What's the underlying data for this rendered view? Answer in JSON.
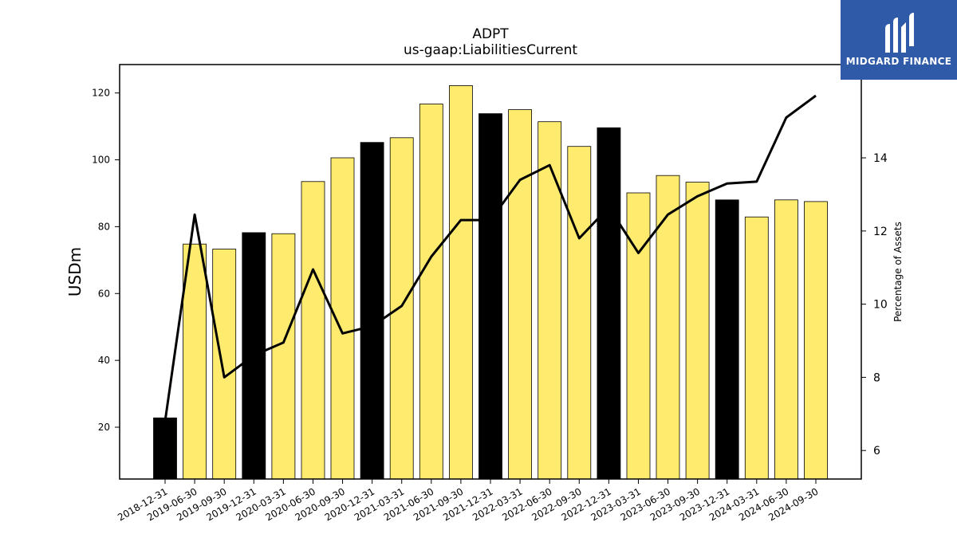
{
  "chart_data": {
    "type": "bar",
    "title": "ADPT",
    "subtitle": "us-gaap:LiabilitiesCurrent",
    "ylabel": "USDm",
    "y2label": "Percentage of Assets",
    "categories": [
      "2018-12-31",
      "2019-06-30",
      "2019-09-30",
      "2019-12-31",
      "2020-03-31",
      "2020-06-30",
      "2020-09-30",
      "2020-12-31",
      "2021-03-31",
      "2021-06-30",
      "2021-09-30",
      "2021-12-31",
      "2022-03-31",
      "2022-06-30",
      "2022-09-30",
      "2022-12-31",
      "2023-03-31",
      "2023-06-30",
      "2023-09-30",
      "2023-12-31",
      "2024-03-31",
      "2024-06-30",
      "2024-09-30"
    ],
    "series": [
      {
        "type": "bar",
        "axis": "left",
        "values": [
          22.8,
          74.8,
          73.3,
          78.2,
          77.9,
          93.5,
          100.6,
          105.2,
          106.6,
          116.7,
          122.2,
          113.8,
          115.0,
          111.4,
          104.0,
          109.6,
          90.1,
          95.3,
          93.3,
          88.0,
          82.9,
          88.0,
          87.5
        ],
        "bar_colors": [
          "#000000",
          "#ffec6e",
          "#ffec6e",
          "#000000",
          "#ffec6e",
          "#ffec6e",
          "#ffec6e",
          "#000000",
          "#ffec6e",
          "#ffec6e",
          "#ffec6e",
          "#000000",
          "#ffec6e",
          "#ffec6e",
          "#ffec6e",
          "#000000",
          "#ffec6e",
          "#ffec6e",
          "#ffec6e",
          "#000000",
          "#ffec6e",
          "#ffec6e",
          "#ffec6e"
        ]
      },
      {
        "type": "line",
        "axis": "right",
        "color": "#000000",
        "values": [
          6.8,
          12.45,
          8.0,
          8.6,
          8.95,
          10.95,
          9.2,
          9.4,
          9.95,
          11.3,
          12.3,
          12.3,
          13.4,
          13.8,
          11.8,
          12.65,
          11.4,
          12.45,
          12.95,
          13.3,
          13.35,
          15.1,
          15.7
        ]
      }
    ],
    "ylim": [
      4.5,
      128.5
    ],
    "y2lim": [
      5.22,
      16.55
    ],
    "yticks": [
      20,
      40,
      60,
      80,
      100,
      120
    ],
    "y2ticks": [
      6,
      8,
      10,
      12,
      14
    ],
    "grid": false,
    "legend": "none",
    "colors": {
      "highlight_bar": "#000000",
      "bar": "#ffec6e",
      "line": "#000000"
    }
  },
  "logo": {
    "text": "MIDGARD FINANCE",
    "background": "#2e5aa8"
  }
}
